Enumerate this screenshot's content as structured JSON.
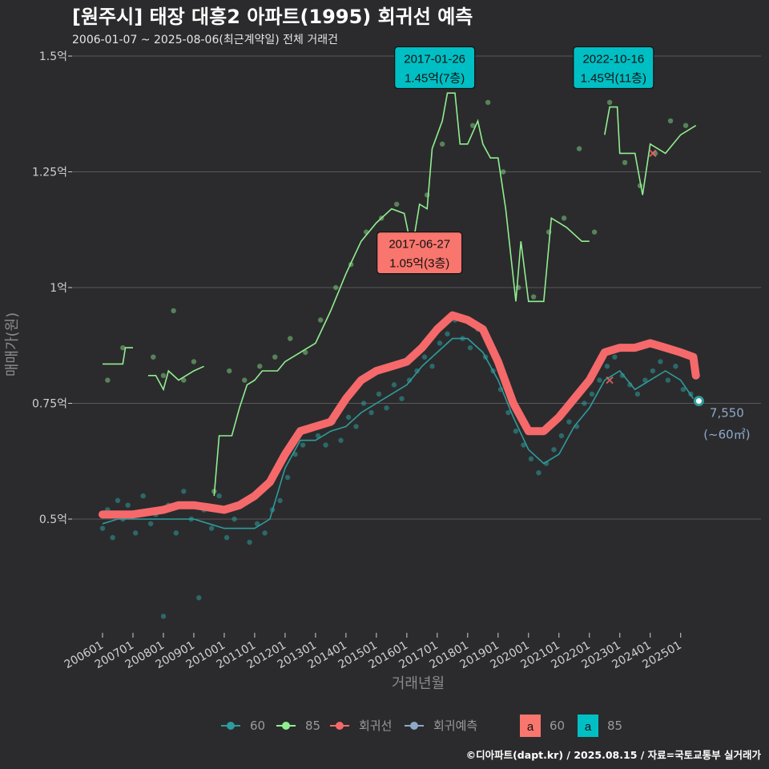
{
  "title": "[원주시] 태장 대흥2 아파트(1995) 회귀선 예측",
  "subtitle": "2006-01-07 ~ 2025-08-06(최근계약일) 전체 거래건",
  "caption": "©디아파트(dapt.kr) / 2025.08.15 / 자료=국토교통부 실거래가",
  "colors": {
    "background": "#2b2b2d",
    "grid": "#5a5a5a",
    "area60": "#2e9c9c",
    "area85": "#90ee90",
    "regression": "#f5696b",
    "forecast": "#8fa8c8",
    "label60": "#f8766d",
    "label85": "#00bfc4"
  },
  "chart_data": {
    "type": "scatter",
    "xlabel": "거래년월",
    "ylabel": "매매가(원)",
    "x_range": [
      "2006-01-01",
      "2025-08-31"
    ],
    "ylim": [
      0.24,
      1.5
    ],
    "y_ticks": [
      {
        "value": 0.5,
        "label": "0.5억"
      },
      {
        "value": 0.75,
        "label": "0.75억"
      },
      {
        "value": 1.0,
        "label": "1억"
      },
      {
        "value": 1.25,
        "label": "1.25억"
      },
      {
        "value": 1.5,
        "label": "1.5억"
      }
    ],
    "x_ticks": [
      "200601",
      "200701",
      "200801",
      "200901",
      "201001",
      "201101",
      "201201",
      "201301",
      "201401",
      "201501",
      "201601",
      "201701",
      "201801",
      "201901",
      "202001",
      "202101",
      "202201",
      "202301",
      "202401",
      "202501"
    ],
    "grid": true,
    "legend_position": "bottom",
    "legend": [
      {
        "key": "60",
        "label": "60",
        "icon": "line-point",
        "color": "#2e9c9c"
      },
      {
        "key": "85",
        "label": "85",
        "icon": "line-point",
        "color": "#90ee90"
      },
      {
        "key": "reg",
        "label": "회귀선",
        "icon": "line-point",
        "color": "#f5696b"
      },
      {
        "key": "fc",
        "label": "회귀예측",
        "icon": "line-point",
        "color": "#8fa8c8"
      },
      {
        "key": "l60",
        "label": "60",
        "icon": "label-a",
        "color": "#f8766d"
      },
      {
        "key": "l85",
        "label": "85",
        "icon": "label-a",
        "color": "#00bfc4"
      }
    ],
    "series": [
      {
        "name": "60",
        "kind": "moving-average",
        "color": "#2e9c9c",
        "points": [
          [
            "2006-01-01",
            0.49
          ],
          [
            "2006-07-01",
            0.5
          ],
          [
            "2007-01-01",
            0.5
          ],
          [
            "2007-07-01",
            0.5
          ],
          [
            "2008-01-01",
            0.5
          ],
          [
            "2008-07-01",
            0.5
          ],
          [
            "2009-01-01",
            0.5
          ],
          [
            "2009-07-01",
            0.49
          ],
          [
            "2010-01-01",
            0.48
          ],
          [
            "2010-07-01",
            0.48
          ],
          [
            "2011-01-01",
            0.48
          ],
          [
            "2011-07-01",
            0.5
          ],
          [
            "2012-01-01",
            0.61
          ],
          [
            "2012-07-01",
            0.67
          ],
          [
            "2013-01-01",
            0.67
          ],
          [
            "2013-07-01",
            0.69
          ],
          [
            "2014-01-01",
            0.7
          ],
          [
            "2014-07-01",
            0.73
          ],
          [
            "2015-01-01",
            0.75
          ],
          [
            "2015-07-01",
            0.77
          ],
          [
            "2016-01-01",
            0.79
          ],
          [
            "2016-07-01",
            0.83
          ],
          [
            "2017-01-01",
            0.86
          ],
          [
            "2017-07-01",
            0.89
          ],
          [
            "2018-01-01",
            0.89
          ],
          [
            "2018-07-01",
            0.86
          ],
          [
            "2019-01-01",
            0.8
          ],
          [
            "2019-07-01",
            0.72
          ],
          [
            "2020-01-01",
            0.65
          ],
          [
            "2020-07-01",
            0.62
          ],
          [
            "2021-01-01",
            0.64
          ],
          [
            "2021-07-01",
            0.7
          ],
          [
            "2022-01-01",
            0.74
          ],
          [
            "2022-07-01",
            0.8
          ],
          [
            "2023-01-01",
            0.82
          ],
          [
            "2023-07-01",
            0.78
          ],
          [
            "2024-01-01",
            0.8
          ],
          [
            "2024-07-01",
            0.82
          ],
          [
            "2025-01-01",
            0.8
          ],
          [
            "2025-06-01",
            0.76
          ]
        ]
      },
      {
        "name": "85",
        "kind": "moving-average",
        "color": "#90ee90",
        "segments": [
          [
            [
              "2006-01-01",
              0.835
            ],
            [
              "2006-09-01",
              0.835
            ],
            [
              "2006-10-01",
              0.87
            ],
            [
              "2007-01-01",
              0.87
            ]
          ],
          [
            [
              "2007-07-01",
              0.81
            ],
            [
              "2007-10-01",
              0.81
            ],
            [
              "2008-01-01",
              0.78
            ],
            [
              "2008-03-01",
              0.82
            ],
            [
              "2008-07-01",
              0.8
            ],
            [
              "2009-01-01",
              0.82
            ],
            [
              "2009-05-01",
              0.83
            ]
          ],
          [
            [
              "2009-09-01",
              0.55
            ],
            [
              "2009-11-01",
              0.68
            ],
            [
              "2010-04-01",
              0.68
            ],
            [
              "2010-07-01",
              0.74
            ],
            [
              "2010-10-01",
              0.79
            ],
            [
              "2011-01-01",
              0.8
            ],
            [
              "2011-04-01",
              0.82
            ],
            [
              "2011-10-01",
              0.82
            ],
            [
              "2012-01-01",
              0.84
            ],
            [
              "2012-07-01",
              0.86
            ],
            [
              "2013-01-01",
              0.88
            ],
            [
              "2013-07-01",
              0.95
            ],
            [
              "2014-01-01",
              1.03
            ],
            [
              "2014-07-01",
              1.1
            ],
            [
              "2015-01-01",
              1.14
            ],
            [
              "2015-07-01",
              1.17
            ],
            [
              "2015-12-01",
              1.16
            ],
            [
              "2016-03-01",
              1.08
            ],
            [
              "2016-06-01",
              1.18
            ],
            [
              "2016-09-01",
              1.17
            ],
            [
              "2016-11-01",
              1.3
            ],
            [
              "2017-03-01",
              1.36
            ],
            [
              "2017-05-01",
              1.42
            ],
            [
              "2017-08-01",
              1.42
            ],
            [
              "2017-10-01",
              1.31
            ],
            [
              "2018-01-01",
              1.31
            ],
            [
              "2018-05-01",
              1.36
            ],
            [
              "2018-07-01",
              1.31
            ],
            [
              "2018-10-01",
              1.28
            ],
            [
              "2019-01-01",
              1.28
            ],
            [
              "2019-04-01",
              1.17
            ],
            [
              "2019-08-01",
              0.97
            ],
            [
              "2019-10-01",
              1.1
            ],
            [
              "2020-01-01",
              0.97
            ],
            [
              "2020-07-01",
              0.97
            ],
            [
              "2020-10-01",
              1.15
            ],
            [
              "2021-01-01",
              1.14
            ],
            [
              "2021-04-01",
              1.13
            ],
            [
              "2021-10-01",
              1.1
            ],
            [
              "2022-01-01",
              1.1
            ]
          ],
          [
            [
              "2022-07-01",
              1.33
            ],
            [
              "2022-09-01",
              1.39
            ],
            [
              "2022-12-01",
              1.39
            ],
            [
              "2023-01-01",
              1.29
            ],
            [
              "2023-07-01",
              1.29
            ],
            [
              "2023-10-01",
              1.2
            ],
            [
              "2024-01-01",
              1.31
            ],
            [
              "2024-07-01",
              1.29
            ],
            [
              "2025-01-01",
              1.33
            ],
            [
              "2025-07-01",
              1.35
            ]
          ]
        ]
      },
      {
        "name": "회귀선",
        "kind": "regression",
        "color": "#f5696b",
        "points": [
          [
            "2006-01-01",
            0.51
          ],
          [
            "2007-01-01",
            0.51
          ],
          [
            "2008-01-01",
            0.52
          ],
          [
            "2008-07-01",
            0.53
          ],
          [
            "2009-01-01",
            0.53
          ],
          [
            "2009-07-01",
            0.525
          ],
          [
            "2010-01-01",
            0.52
          ],
          [
            "2010-07-01",
            0.53
          ],
          [
            "2011-01-01",
            0.55
          ],
          [
            "2011-07-01",
            0.58
          ],
          [
            "2012-01-01",
            0.64
          ],
          [
            "2012-07-01",
            0.69
          ],
          [
            "2013-01-01",
            0.7
          ],
          [
            "2013-07-01",
            0.71
          ],
          [
            "2014-01-01",
            0.76
          ],
          [
            "2014-07-01",
            0.8
          ],
          [
            "2015-01-01",
            0.82
          ],
          [
            "2015-07-01",
            0.83
          ],
          [
            "2016-01-01",
            0.84
          ],
          [
            "2016-07-01",
            0.87
          ],
          [
            "2017-01-01",
            0.91
          ],
          [
            "2017-07-01",
            0.94
          ],
          [
            "2018-01-01",
            0.93
          ],
          [
            "2018-07-01",
            0.91
          ],
          [
            "2019-01-01",
            0.84
          ],
          [
            "2019-07-01",
            0.75
          ],
          [
            "2020-01-01",
            0.69
          ],
          [
            "2020-07-01",
            0.69
          ],
          [
            "2021-01-01",
            0.72
          ],
          [
            "2021-07-01",
            0.76
          ],
          [
            "2022-01-01",
            0.8
          ],
          [
            "2022-07-01",
            0.86
          ],
          [
            "2023-01-01",
            0.87
          ],
          [
            "2023-07-01",
            0.87
          ],
          [
            "2024-01-01",
            0.88
          ],
          [
            "2024-07-01",
            0.87
          ],
          [
            "2025-01-01",
            0.86
          ],
          [
            "2025-06-01",
            0.85
          ],
          [
            "2025-07-01",
            0.81
          ]
        ]
      }
    ],
    "scatter_60": [
      [
        "2006-01-01",
        0.48
      ],
      [
        "2006-03-01",
        0.52
      ],
      [
        "2006-05-01",
        0.46
      ],
      [
        "2006-07-01",
        0.54
      ],
      [
        "2006-09-01",
        0.5
      ],
      [
        "2006-11-01",
        0.53
      ],
      [
        "2007-02-01",
        0.47
      ],
      [
        "2007-05-01",
        0.55
      ],
      [
        "2007-08-01",
        0.49
      ],
      [
        "2007-10-01",
        0.51
      ],
      [
        "2008-01-01",
        0.29
      ],
      [
        "2008-03-01",
        0.53
      ],
      [
        "2008-06-01",
        0.47
      ],
      [
        "2008-09-01",
        0.56
      ],
      [
        "2008-12-01",
        0.5
      ],
      [
        "2009-03-01",
        0.33
      ],
      [
        "2009-05-01",
        0.52
      ],
      [
        "2009-08-01",
        0.48
      ],
      [
        "2009-11-01",
        0.55
      ],
      [
        "2010-02-01",
        0.46
      ],
      [
        "2010-05-01",
        0.5
      ],
      [
        "2010-08-01",
        0.53
      ],
      [
        "2010-11-01",
        0.45
      ],
      [
        "2011-02-01",
        0.49
      ],
      [
        "2011-05-01",
        0.47
      ],
      [
        "2011-08-01",
        0.52
      ],
      [
        "2011-11-01",
        0.54
      ],
      [
        "2012-02-01",
        0.59
      ],
      [
        "2012-05-01",
        0.64
      ],
      [
        "2012-08-01",
        0.66
      ],
      [
        "2012-11-01",
        0.7
      ],
      [
        "2013-02-01",
        0.68
      ],
      [
        "2013-05-01",
        0.66
      ],
      [
        "2013-08-01",
        0.71
      ],
      [
        "2013-11-01",
        0.67
      ],
      [
        "2014-02-01",
        0.72
      ],
      [
        "2014-05-01",
        0.7
      ],
      [
        "2014-08-01",
        0.75
      ],
      [
        "2014-11-01",
        0.73
      ],
      [
        "2015-02-01",
        0.77
      ],
      [
        "2015-05-01",
        0.74
      ],
      [
        "2015-08-01",
        0.79
      ],
      [
        "2015-11-01",
        0.76
      ],
      [
        "2016-02-01",
        0.8
      ],
      [
        "2016-05-01",
        0.82
      ],
      [
        "2016-08-01",
        0.85
      ],
      [
        "2016-11-01",
        0.83
      ],
      [
        "2017-02-01",
        0.88
      ],
      [
        "2017-05-01",
        0.9
      ],
      [
        "2017-08-01",
        0.93
      ],
      [
        "2017-11-01",
        0.89
      ],
      [
        "2018-02-01",
        0.87
      ],
      [
        "2018-05-01",
        0.91
      ],
      [
        "2018-08-01",
        0.85
      ],
      [
        "2018-11-01",
        0.82
      ],
      [
        "2019-02-01",
        0.78
      ],
      [
        "2019-05-01",
        0.73
      ],
      [
        "2019-08-01",
        0.69
      ],
      [
        "2019-11-01",
        0.66
      ],
      [
        "2020-02-01",
        0.63
      ],
      [
        "2020-05-01",
        0.6
      ],
      [
        "2020-08-01",
        0.62
      ],
      [
        "2020-11-01",
        0.65
      ],
      [
        "2021-02-01",
        0.68
      ],
      [
        "2021-05-01",
        0.71
      ],
      [
        "2021-08-01",
        0.7
      ],
      [
        "2021-11-01",
        0.75
      ],
      [
        "2022-02-01",
        0.77
      ],
      [
        "2022-05-01",
        0.8
      ],
      [
        "2022-08-01",
        0.83
      ],
      [
        "2022-11-01",
        0.85
      ],
      [
        "2023-02-01",
        0.81
      ],
      [
        "2023-05-01",
        0.79
      ],
      [
        "2023-08-01",
        0.77
      ],
      [
        "2023-11-01",
        0.8
      ],
      [
        "2024-02-01",
        0.82
      ],
      [
        "2024-05-01",
        0.84
      ],
      [
        "2024-08-01",
        0.8
      ],
      [
        "2024-11-01",
        0.83
      ],
      [
        "2025-02-01",
        0.78
      ],
      [
        "2025-05-01",
        0.77
      ]
    ],
    "scatter_85": [
      [
        "2006-03-01",
        0.8
      ],
      [
        "2006-09-01",
        0.87
      ],
      [
        "2007-09-01",
        0.85
      ],
      [
        "2008-01-01",
        0.81
      ],
      [
        "2008-05-01",
        0.95
      ],
      [
        "2008-09-01",
        0.8
      ],
      [
        "2009-01-01",
        0.84
      ],
      [
        "2009-09-01",
        0.56
      ],
      [
        "2010-03-01",
        0.82
      ],
      [
        "2010-09-01",
        0.8
      ],
      [
        "2011-03-01",
        0.83
      ],
      [
        "2011-09-01",
        0.85
      ],
      [
        "2012-03-01",
        0.89
      ],
      [
        "2012-09-01",
        0.86
      ],
      [
        "2013-03-01",
        0.93
      ],
      [
        "2013-09-01",
        1.0
      ],
      [
        "2014-03-01",
        1.05
      ],
      [
        "2014-09-01",
        1.12
      ],
      [
        "2015-03-01",
        1.15
      ],
      [
        "2015-09-01",
        1.18
      ],
      [
        "2016-03-01",
        1.1
      ],
      [
        "2016-09-01",
        1.2
      ],
      [
        "2017-03-01",
        1.31
      ],
      [
        "2017-09-01",
        1.45
      ],
      [
        "2018-03-01",
        1.35
      ],
      [
        "2018-09-01",
        1.4
      ],
      [
        "2019-03-01",
        1.25
      ],
      [
        "2019-09-01",
        1.0
      ],
      [
        "2020-03-01",
        0.98
      ],
      [
        "2020-09-01",
        1.12
      ],
      [
        "2021-03-01",
        1.15
      ],
      [
        "2021-09-01",
        1.3
      ],
      [
        "2022-03-01",
        1.12
      ],
      [
        "2022-09-01",
        1.4
      ],
      [
        "2023-03-01",
        1.27
      ],
      [
        "2023-09-01",
        1.22
      ],
      [
        "2024-03-01",
        1.29
      ],
      [
        "2024-09-01",
        1.36
      ],
      [
        "2025-03-01",
        1.35
      ]
    ],
    "regression_markers": [
      [
        "2022-09-01",
        0.8
      ],
      [
        "2024-02-01",
        1.29
      ]
    ],
    "annotations": [
      {
        "date": "2017-01-26",
        "value_text": "1.45억(7층)",
        "size": "85",
        "x": "2016-12-01",
        "y": 1.43
      },
      {
        "date": "2022-10-16",
        "value_text": "1.45억(11층)",
        "size": "85",
        "x": "2022-10-16",
        "y": 1.43
      },
      {
        "date": "2017-06-27",
        "value_text": "1.05억(3층)",
        "size": "60",
        "x": "2016-06-01",
        "y": 1.03
      }
    ],
    "forecast_point": {
      "x": "2025-08-06",
      "y": 0.755,
      "label_value": "7,550",
      "label_area": "(~60㎡)"
    }
  }
}
